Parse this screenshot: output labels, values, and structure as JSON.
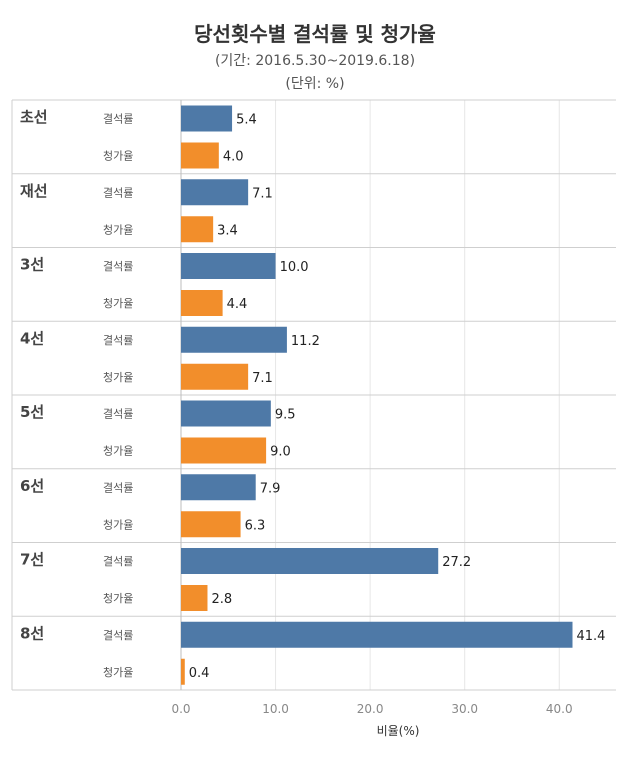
{
  "header": {
    "title": "당선횟수별 결석률 및 청가율",
    "subtitle": "(기간: 2016.5.30~2019.6.18)",
    "unit": "(단위: %)"
  },
  "colors": {
    "absence": "#4e79a7",
    "leave": "#f28e2b",
    "gridline": "#e6e6e6",
    "separator": "#cfcfcf"
  },
  "chart_data": {
    "type": "bar",
    "orientation": "horizontal",
    "title": "당선횟수별 결석률 및 청가율",
    "xlabel": "비율(%)",
    "ylabel": "",
    "xlim": [
      0,
      46
    ],
    "x_ticks": [
      "0.0",
      "10.0",
      "20.0",
      "30.0",
      "40.0"
    ],
    "x_tick_values": [
      0,
      10,
      20,
      30,
      40
    ],
    "grid": true,
    "groups": [
      {
        "name": "초선",
        "bars": [
          {
            "metric": "결석률",
            "value": 5.4,
            "label": "5.4"
          },
          {
            "metric": "청가율",
            "value": 4.0,
            "label": "4.0"
          }
        ]
      },
      {
        "name": "재선",
        "bars": [
          {
            "metric": "결석률",
            "value": 7.1,
            "label": "7.1"
          },
          {
            "metric": "청가율",
            "value": 3.4,
            "label": "3.4"
          }
        ]
      },
      {
        "name": "3선",
        "bars": [
          {
            "metric": "결석률",
            "value": 10.0,
            "label": "10.0"
          },
          {
            "metric": "청가율",
            "value": 4.4,
            "label": "4.4"
          }
        ]
      },
      {
        "name": "4선",
        "bars": [
          {
            "metric": "결석률",
            "value": 11.2,
            "label": "11.2"
          },
          {
            "metric": "청가율",
            "value": 7.1,
            "label": "7.1"
          }
        ]
      },
      {
        "name": "5선",
        "bars": [
          {
            "metric": "결석률",
            "value": 9.5,
            "label": "9.5"
          },
          {
            "metric": "청가율",
            "value": 9.0,
            "label": "9.0"
          }
        ]
      },
      {
        "name": "6선",
        "bars": [
          {
            "metric": "결석률",
            "value": 7.9,
            "label": "7.9"
          },
          {
            "metric": "청가율",
            "value": 6.3,
            "label": "6.3"
          }
        ]
      },
      {
        "name": "7선",
        "bars": [
          {
            "metric": "결석률",
            "value": 27.2,
            "label": "27.2"
          },
          {
            "metric": "청가율",
            "value": 2.8,
            "label": "2.8"
          }
        ]
      },
      {
        "name": "8선",
        "bars": [
          {
            "metric": "결석률",
            "value": 41.4,
            "label": "41.4"
          },
          {
            "metric": "청가율",
            "value": 0.4,
            "label": "0.4"
          }
        ]
      }
    ]
  }
}
